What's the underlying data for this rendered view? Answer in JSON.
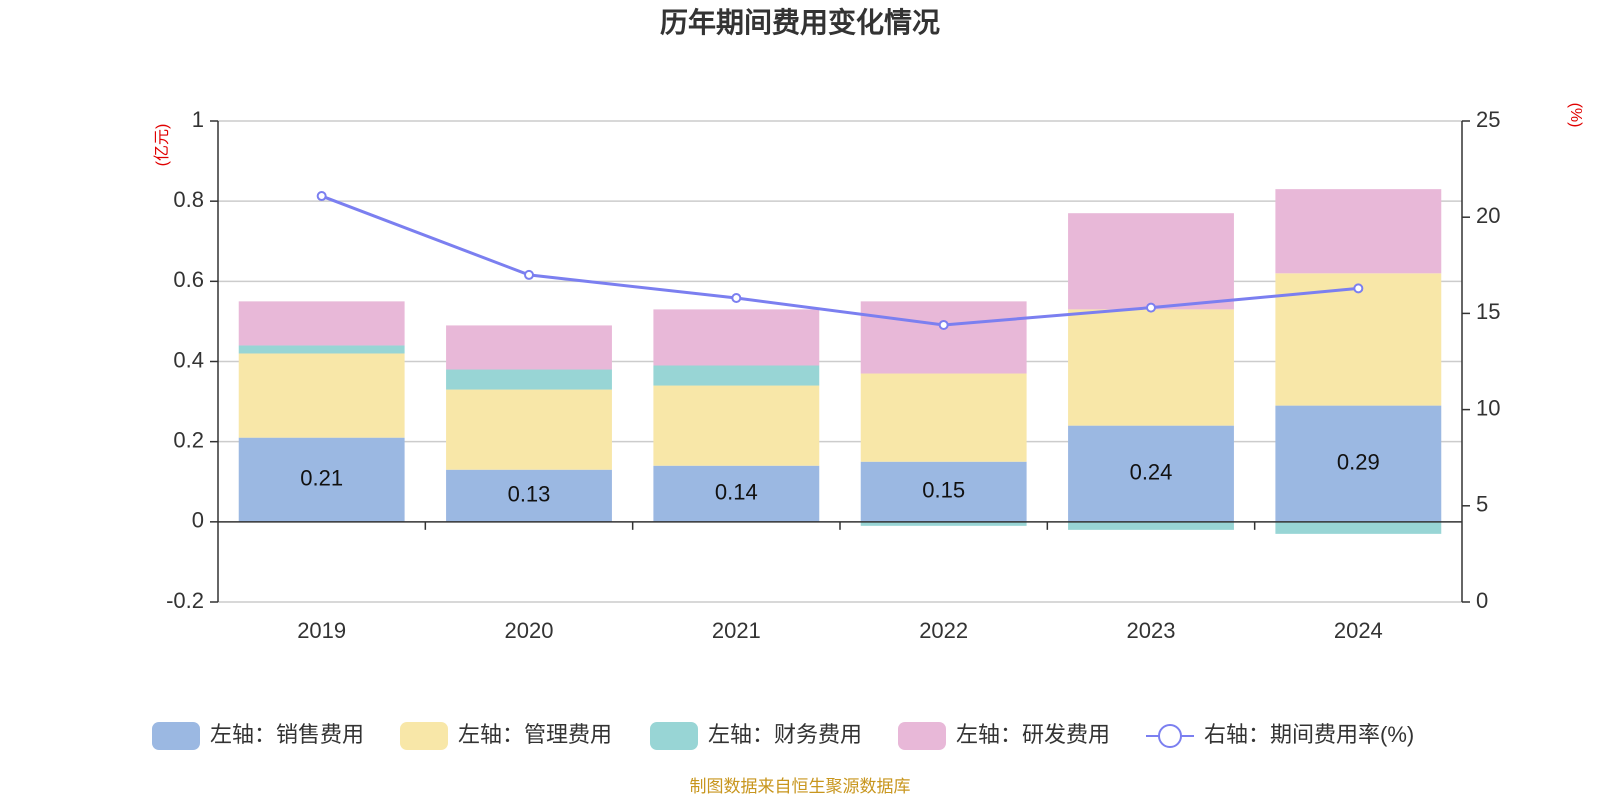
{
  "chart_data": {
    "type": "bar",
    "title": "历年期间费用变化情况",
    "categories": [
      "2019",
      "2020",
      "2021",
      "2022",
      "2023",
      "2024"
    ],
    "left_axis": {
      "unit": "(亿元)",
      "range": [
        -0.2,
        1
      ],
      "ticks": [
        -0.2,
        0,
        0.2,
        0.4,
        0.6,
        0.8,
        1
      ],
      "tick_labels": [
        "-0.2",
        "0",
        "0.2",
        "0.4",
        "0.6",
        "0.8",
        "1"
      ]
    },
    "right_axis": {
      "unit": "(%)",
      "range": [
        0,
        25
      ],
      "ticks": [
        0,
        5,
        10,
        15,
        20,
        25
      ],
      "tick_labels": [
        "0",
        "5",
        "10",
        "15",
        "20",
        "25"
      ]
    },
    "grid": true,
    "legend_position": "bottom",
    "series": [
      {
        "name": "左轴：销售费用",
        "type": "bar",
        "axis": "left",
        "color": "#9bb8e2",
        "values": [
          0.21,
          0.13,
          0.14,
          0.15,
          0.24,
          0.29
        ],
        "labels": [
          "0.21",
          "0.13",
          "0.14",
          "0.15",
          "0.24",
          "0.29"
        ]
      },
      {
        "name": "左轴：管理费用",
        "type": "bar",
        "axis": "left",
        "color": "#f8e7a8",
        "values": [
          0.21,
          0.2,
          0.2,
          0.22,
          0.29,
          0.33
        ]
      },
      {
        "name": "左轴：财务费用",
        "type": "bar",
        "axis": "left",
        "color": "#98d5d5",
        "values": [
          0.02,
          0.05,
          0.05,
          -0.01,
          -0.02,
          -0.03
        ]
      },
      {
        "name": "左轴：研发费用",
        "type": "bar",
        "axis": "left",
        "color": "#e8b8d8",
        "values": [
          0.11,
          0.11,
          0.14,
          0.18,
          0.24,
          0.21
        ]
      },
      {
        "name": "右轴：期间费用率(%)",
        "type": "line",
        "axis": "right",
        "color": "#7b7ff0",
        "values": [
          21.1,
          17.0,
          15.8,
          14.4,
          15.3,
          16.3
        ]
      }
    ],
    "source": "制图数据来自恒生聚源数据库"
  }
}
